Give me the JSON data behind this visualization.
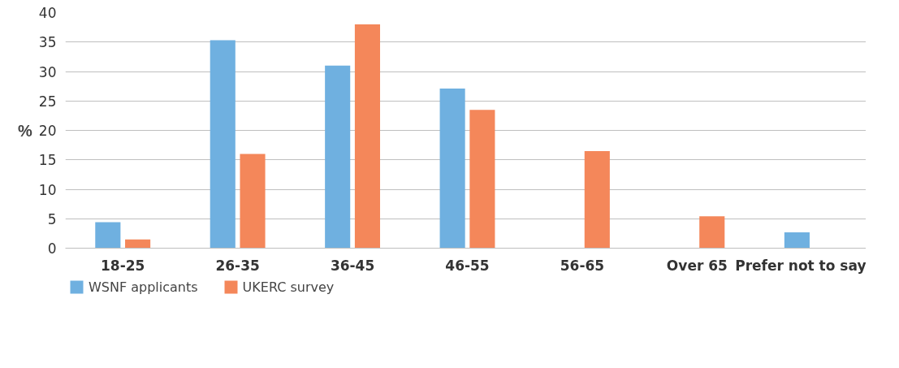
{
  "chart_data": {
    "type": "bar",
    "ylabel": "%",
    "categories": [
      "18-25",
      "26-35",
      "36-45",
      "46-55",
      "56-65",
      "Over 65",
      "Prefer not to say"
    ],
    "series": [
      {
        "name": "WSNF applicants",
        "color": "#6fb0e0",
        "values": [
          4.4,
          35.3,
          31.0,
          27.1,
          0,
          0,
          2.7
        ]
      },
      {
        "name": "UKERC survey",
        "color": "#f4875a",
        "values": [
          1.5,
          16.0,
          38.0,
          23.5,
          16.5,
          5.4,
          0
        ]
      }
    ],
    "ylim": [
      0,
      40
    ],
    "yticks": [
      0,
      5,
      10,
      15,
      20,
      25,
      30,
      35,
      40
    ],
    "grid": "y",
    "legend": "bottom left"
  }
}
